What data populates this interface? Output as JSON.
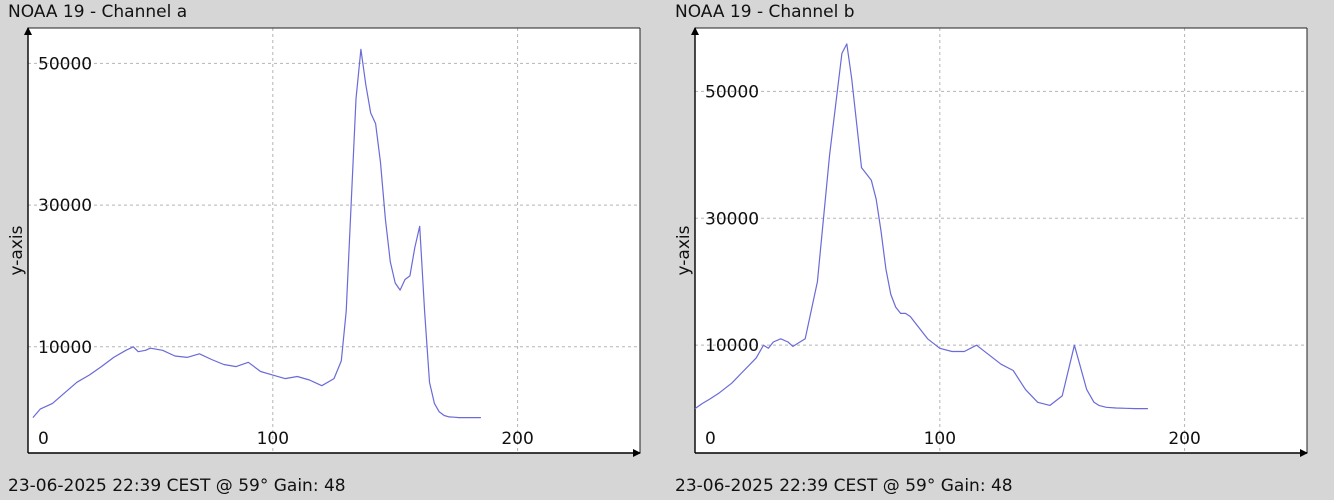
{
  "chart_data": [
    {
      "type": "line",
      "title": "NOAA 19 - Channel a",
      "footer": "23-06-2025 22:39 CEST @ 59° Gain: 48",
      "ylabel": "y-axis",
      "xlim": [
        0,
        250
      ],
      "ylim": [
        -5000,
        55000
      ],
      "xticks": [
        0,
        100,
        200
      ],
      "yticks": [
        10000,
        30000,
        50000
      ],
      "grid": true,
      "line_color": "#6a6ad8",
      "series": [
        {
          "x": [
            2,
            5,
            10,
            15,
            20,
            25,
            30,
            35,
            40,
            43,
            45,
            48,
            50,
            55,
            60,
            65,
            70,
            75,
            80,
            85,
            90,
            95,
            100,
            105,
            110,
            115,
            120,
            125,
            128,
            130,
            132,
            134,
            136,
            138,
            140,
            142,
            144,
            146,
            148,
            150,
            152,
            154,
            156,
            158,
            160,
            162,
            164,
            166,
            168,
            170,
            172,
            174,
            176,
            178,
            180,
            182,
            185
          ],
          "y": [
            0,
            1200,
            2000,
            3500,
            5000,
            6000,
            7200,
            8500,
            9500,
            10000,
            9300,
            9500,
            9800,
            9500,
            8700,
            8500,
            9000,
            8200,
            7500,
            7200,
            7800,
            6500,
            6000,
            5500,
            5800,
            5300,
            4500,
            5500,
            8000,
            15000,
            30000,
            45000,
            52000,
            47000,
            43000,
            41500,
            36000,
            28000,
            22000,
            19000,
            18000,
            19500,
            20000,
            24000,
            27000,
            15000,
            5000,
            2000,
            800,
            300,
            100,
            50,
            0,
            0,
            0,
            0,
            0
          ]
        }
      ]
    },
    {
      "type": "line",
      "title": "NOAA 19 - Channel b",
      "footer": "23-06-2025 22:39 CEST @ 59° Gain: 48",
      "ylabel": "y-axis",
      "xlim": [
        0,
        250
      ],
      "ylim": [
        -7000,
        60000
      ],
      "xticks": [
        0,
        100,
        200
      ],
      "yticks": [
        10000,
        30000,
        50000
      ],
      "grid": true,
      "line_color": "#6a6ad8",
      "series": [
        {
          "x": [
            0,
            3,
            6,
            10,
            15,
            20,
            25,
            28,
            30,
            32,
            35,
            38,
            40,
            45,
            50,
            55,
            60,
            62,
            64,
            66,
            68,
            70,
            72,
            74,
            76,
            78,
            80,
            82,
            84,
            86,
            88,
            90,
            95,
            100,
            105,
            110,
            115,
            120,
            125,
            130,
            135,
            140,
            145,
            150,
            155,
            160,
            163,
            165,
            168,
            172,
            176,
            180,
            185
          ],
          "y": [
            0,
            800,
            1500,
            2500,
            4000,
            6000,
            8000,
            10000,
            9500,
            10500,
            11000,
            10500,
            9800,
            11000,
            20000,
            40000,
            56000,
            57500,
            52000,
            45000,
            38000,
            37000,
            36000,
            33000,
            28000,
            22000,
            18000,
            16000,
            15000,
            15000,
            14500,
            13500,
            11000,
            9500,
            9000,
            9000,
            10000,
            8500,
            7000,
            6000,
            3000,
            1000,
            500,
            2000,
            10000,
            3000,
            1000,
            500,
            200,
            100,
            50,
            0,
            0
          ]
        }
      ]
    }
  ]
}
